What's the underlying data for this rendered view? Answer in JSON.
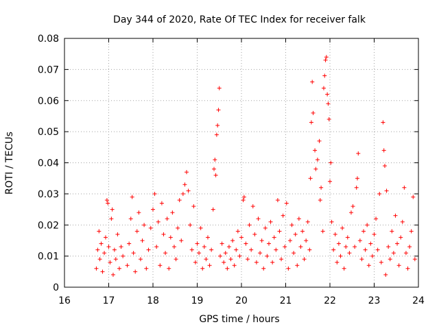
{
  "chart_data": {
    "type": "scatter",
    "title": "Day 344 of 2020, Rate Of TEC Index for receiver falk",
    "xlabel": "GPS time / hours",
    "ylabel": "ROTI / TECUs",
    "xlim": [
      16,
      24
    ],
    "ylim": [
      0,
      0.08
    ],
    "x_ticks": [
      "16",
      "17",
      "18",
      "19",
      "20",
      "21",
      "22",
      "23",
      "24"
    ],
    "y_ticks": [
      "0",
      "0.01",
      "0.02",
      "0.03",
      "0.04",
      "0.05",
      "0.06",
      "0.07",
      "0.08"
    ],
    "grid": true,
    "marker": "+",
    "color": "#ff0000",
    "series": [
      {
        "name": "ROTI",
        "points": [
          [
            16.72,
            0.006
          ],
          [
            16.75,
            0.012
          ],
          [
            16.78,
            0.018
          ],
          [
            16.8,
            0.009
          ],
          [
            16.83,
            0.014
          ],
          [
            16.86,
            0.005
          ],
          [
            16.9,
            0.011
          ],
          [
            16.93,
            0.016
          ],
          [
            16.96,
            0.028
          ],
          [
            16.98,
            0.027
          ],
          [
            17.0,
            0.013
          ],
          [
            17.03,
            0.008
          ],
          [
            17.06,
            0.022
          ],
          [
            17.08,
            0.025
          ],
          [
            17.1,
            0.004
          ],
          [
            17.13,
            0.012
          ],
          [
            17.16,
            0.009
          ],
          [
            17.2,
            0.017
          ],
          [
            17.24,
            0.006
          ],
          [
            17.28,
            0.013
          ],
          [
            17.32,
            0.01
          ],
          [
            17.42,
            0.007
          ],
          [
            17.46,
            0.014
          ],
          [
            17.5,
            0.022
          ],
          [
            17.53,
            0.029
          ],
          [
            17.56,
            0.011
          ],
          [
            17.6,
            0.005
          ],
          [
            17.64,
            0.018
          ],
          [
            17.68,
            0.024
          ],
          [
            17.72,
            0.009
          ],
          [
            17.76,
            0.015
          ],
          [
            17.8,
            0.02
          ],
          [
            17.85,
            0.006
          ],
          [
            17.9,
            0.012
          ],
          [
            17.95,
            0.019
          ],
          [
            18.0,
            0.025
          ],
          [
            18.04,
            0.03
          ],
          [
            18.08,
            0.013
          ],
          [
            18.12,
            0.021
          ],
          [
            18.16,
            0.007
          ],
          [
            18.2,
            0.027
          ],
          [
            18.24,
            0.017
          ],
          [
            18.28,
            0.011
          ],
          [
            18.32,
            0.022
          ],
          [
            18.36,
            0.006
          ],
          [
            18.4,
            0.016
          ],
          [
            18.44,
            0.024
          ],
          [
            18.48,
            0.013
          ],
          [
            18.52,
            0.009
          ],
          [
            18.56,
            0.019
          ],
          [
            18.6,
            0.028
          ],
          [
            18.64,
            0.015
          ],
          [
            18.68,
            0.03
          ],
          [
            18.72,
            0.033
          ],
          [
            18.76,
            0.037
          ],
          [
            18.8,
            0.031
          ],
          [
            18.84,
            0.02
          ],
          [
            18.88,
            0.012
          ],
          [
            18.92,
            0.026
          ],
          [
            18.96,
            0.008
          ],
          [
            19.0,
            0.014
          ],
          [
            19.04,
            0.011
          ],
          [
            19.08,
            0.019
          ],
          [
            19.12,
            0.006
          ],
          [
            19.16,
            0.013
          ],
          [
            19.2,
            0.009
          ],
          [
            19.24,
            0.016
          ],
          [
            19.28,
            0.007
          ],
          [
            19.32,
            0.012
          ],
          [
            19.36,
            0.025
          ],
          [
            19.38,
            0.038
          ],
          [
            19.4,
            0.041
          ],
          [
            19.42,
            0.036
          ],
          [
            19.44,
            0.049
          ],
          [
            19.46,
            0.052
          ],
          [
            19.48,
            0.057
          ],
          [
            19.5,
            0.064
          ],
          [
            19.52,
            0.01
          ],
          [
            19.56,
            0.014
          ],
          [
            19.6,
            0.008
          ],
          [
            19.64,
            0.011
          ],
          [
            19.68,
            0.006
          ],
          [
            19.72,
            0.013
          ],
          [
            19.76,
            0.009
          ],
          [
            19.8,
            0.015
          ],
          [
            19.84,
            0.007
          ],
          [
            19.88,
            0.012
          ],
          [
            19.92,
            0.018
          ],
          [
            19.96,
            0.01
          ],
          [
            20.0,
            0.016
          ],
          [
            20.04,
            0.028
          ],
          [
            20.06,
            0.029
          ],
          [
            20.1,
            0.014
          ],
          [
            20.14,
            0.009
          ],
          [
            20.18,
            0.02
          ],
          [
            20.22,
            0.012
          ],
          [
            20.26,
            0.026
          ],
          [
            20.3,
            0.017
          ],
          [
            20.34,
            0.008
          ],
          [
            20.38,
            0.022
          ],
          [
            20.42,
            0.011
          ],
          [
            20.46,
            0.015
          ],
          [
            20.5,
            0.006
          ],
          [
            20.54,
            0.019
          ],
          [
            20.58,
            0.01
          ],
          [
            20.62,
            0.014
          ],
          [
            20.66,
            0.021
          ],
          [
            20.7,
            0.008
          ],
          [
            20.74,
            0.016
          ],
          [
            20.78,
            0.012
          ],
          [
            20.82,
            0.028
          ],
          [
            20.86,
            0.018
          ],
          [
            20.9,
            0.009
          ],
          [
            20.94,
            0.023
          ],
          [
            20.98,
            0.013
          ],
          [
            21.02,
            0.027
          ],
          [
            21.06,
            0.006
          ],
          [
            21.1,
            0.015
          ],
          [
            21.14,
            0.02
          ],
          [
            21.18,
            0.011
          ],
          [
            21.22,
            0.017
          ],
          [
            21.26,
            0.007
          ],
          [
            21.3,
            0.022
          ],
          [
            21.34,
            0.013
          ],
          [
            21.38,
            0.018
          ],
          [
            21.42,
            0.009
          ],
          [
            21.46,
            0.015
          ],
          [
            21.5,
            0.021
          ],
          [
            21.54,
            0.012
          ],
          [
            21.56,
            0.035
          ],
          [
            21.58,
            0.053
          ],
          [
            21.6,
            0.066
          ],
          [
            21.62,
            0.056
          ],
          [
            21.66,
            0.044
          ],
          [
            21.68,
            0.038
          ],
          [
            21.72,
            0.041
          ],
          [
            21.76,
            0.047
          ],
          [
            21.78,
            0.028
          ],
          [
            21.8,
            0.032
          ],
          [
            21.84,
            0.018
          ],
          [
            21.86,
            0.064
          ],
          [
            21.88,
            0.068
          ],
          [
            21.9,
            0.073
          ],
          [
            21.92,
            0.074
          ],
          [
            21.94,
            0.062
          ],
          [
            21.96,
            0.059
          ],
          [
            21.98,
            0.054
          ],
          [
            22.0,
            0.034
          ],
          [
            22.02,
            0.04
          ],
          [
            22.04,
            0.021
          ],
          [
            22.08,
            0.012
          ],
          [
            22.12,
            0.017
          ],
          [
            22.16,
            0.008
          ],
          [
            22.2,
            0.014
          ],
          [
            22.24,
            0.01
          ],
          [
            22.28,
            0.019
          ],
          [
            22.32,
            0.006
          ],
          [
            22.36,
            0.013
          ],
          [
            22.4,
            0.016
          ],
          [
            22.44,
            0.011
          ],
          [
            22.48,
            0.024
          ],
          [
            22.52,
            0.026
          ],
          [
            22.56,
            0.013
          ],
          [
            22.6,
            0.032
          ],
          [
            22.62,
            0.035
          ],
          [
            22.64,
            0.043
          ],
          [
            22.68,
            0.015
          ],
          [
            22.72,
            0.009
          ],
          [
            22.76,
            0.018
          ],
          [
            22.8,
            0.012
          ],
          [
            22.84,
            0.02
          ],
          [
            22.88,
            0.007
          ],
          [
            22.92,
            0.014
          ],
          [
            22.96,
            0.01
          ],
          [
            23.0,
            0.017
          ],
          [
            23.04,
            0.022
          ],
          [
            23.08,
            0.012
          ],
          [
            23.12,
            0.03
          ],
          [
            23.16,
            0.008
          ],
          [
            23.2,
            0.053
          ],
          [
            23.22,
            0.044
          ],
          [
            23.24,
            0.039
          ],
          [
            23.26,
            0.004
          ],
          [
            23.28,
            0.031
          ],
          [
            23.32,
            0.013
          ],
          [
            23.36,
            0.009
          ],
          [
            23.4,
            0.018
          ],
          [
            23.44,
            0.011
          ],
          [
            23.48,
            0.023
          ],
          [
            23.52,
            0.014
          ],
          [
            23.56,
            0.007
          ],
          [
            23.6,
            0.016
          ],
          [
            23.64,
            0.021
          ],
          [
            23.68,
            0.032
          ],
          [
            23.72,
            0.011
          ],
          [
            23.76,
            0.006
          ],
          [
            23.8,
            0.013
          ],
          [
            23.84,
            0.018
          ],
          [
            23.88,
            0.029
          ],
          [
            23.92,
            0.009
          ]
        ]
      }
    ]
  }
}
